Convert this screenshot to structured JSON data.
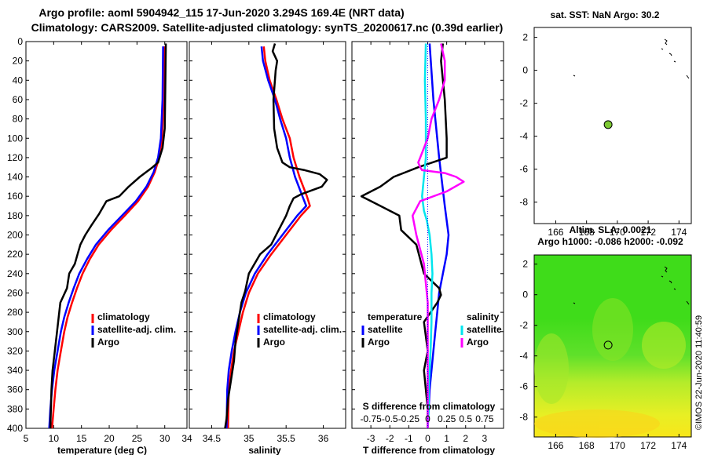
{
  "figure": {
    "title_line1": "Argo profile: aoml 5904942_115 17-Jun-2020 3.294S 169.4E (NRT data)",
    "title_line2": "Climatology: CARS2009. Satellite-adjusted climatology: synTS_20200617.nc (0.39d earlier)",
    "side_label": "©IMOS 22-Jun-2020 11:40:59"
  },
  "colors": {
    "climatology": "#ff0000",
    "satellite": "#0000ff",
    "argo": "#000000",
    "sal_satellite": "#00e5ee",
    "sal_argo": "#ff00ff",
    "float_marker": "#7cc832",
    "map_sst_bg": "#ffffff"
  },
  "chart_data": [
    {
      "id": "temperature",
      "type": "line",
      "xlabel": "temperature (deg C)",
      "ylabel": "",
      "xlim": [
        5,
        34
      ],
      "ylim": [
        400,
        0
      ],
      "x_ticks": [
        5,
        10,
        15,
        20,
        25,
        30
      ],
      "y_ticks": [
        0,
        20,
        40,
        60,
        80,
        100,
        120,
        140,
        160,
        180,
        200,
        220,
        240,
        260,
        280,
        300,
        320,
        340,
        360,
        380,
        400
      ],
      "legend": [
        "climatology",
        "satellite-adj. clim.",
        "Argo"
      ],
      "legend_position": "bottom-right",
      "series": [
        {
          "name": "climatology",
          "color_key": "climatology",
          "x": [
            29.9,
            29.8,
            29.5,
            29.0,
            28.2,
            27.0,
            25.2,
            22.8,
            20.3,
            18.1,
            16.5,
            15.2,
            14.2,
            13.3,
            12.5,
            11.9,
            11.3,
            10.7,
            10.3,
            10.0,
            9.7
          ],
          "y": [
            5,
            60,
            100,
            120,
            135,
            150,
            165,
            180,
            195,
            210,
            225,
            240,
            255,
            270,
            285,
            300,
            320,
            340,
            360,
            380,
            400
          ]
        },
        {
          "name": "satellite-adj. clim.",
          "color_key": "satellite",
          "x": [
            29.7,
            29.6,
            29.3,
            28.8,
            28.0,
            26.7,
            24.8,
            22.3,
            19.8,
            17.6,
            16.0,
            14.6,
            13.6,
            12.7,
            11.9,
            11.3,
            10.7,
            10.1,
            9.7,
            9.4,
            9.2
          ],
          "y": [
            5,
            60,
            100,
            120,
            135,
            150,
            165,
            180,
            195,
            210,
            225,
            240,
            255,
            270,
            285,
            300,
            320,
            340,
            360,
            380,
            400
          ]
        },
        {
          "name": "Argo",
          "color_key": "argo",
          "x": [
            30.2,
            30.1,
            30.0,
            29.6,
            28.8,
            27.8,
            25.5,
            23.5,
            21.8,
            19.5,
            18.2,
            16.8,
            15.7,
            14.8,
            14.3,
            13.8,
            12.8,
            12.4,
            11.2,
            11.0,
            10.6,
            10.2,
            9.8,
            9.6,
            9.5,
            9.4
          ],
          "y": [
            2,
            50,
            90,
            110,
            125,
            130,
            140,
            150,
            160,
            165,
            178,
            190,
            200,
            210,
            220,
            230,
            240,
            255,
            270,
            280,
            300,
            320,
            340,
            360,
            380,
            400
          ]
        }
      ]
    },
    {
      "id": "salinity",
      "type": "line",
      "xlabel": "salinity",
      "ylabel": "",
      "xlim": [
        34.2,
        36.3
      ],
      "ylim": [
        400,
        0
      ],
      "x_ticks": [
        34.5,
        35,
        35.5,
        36
      ],
      "x_tick_labels": [
        "34.5",
        "35",
        "35.5",
        "36"
      ],
      "y_ticks": [
        0,
        20,
        40,
        60,
        80,
        100,
        120,
        140,
        160,
        180,
        200,
        220,
        240,
        260,
        280,
        300,
        320,
        340,
        360,
        380,
        400
      ],
      "legend": [
        "climatology",
        "satellite-adj. clim.",
        "Argo"
      ],
      "legend_position": "bottom-right",
      "series": [
        {
          "name": "climatology",
          "color_key": "climatology",
          "x": [
            35.2,
            35.22,
            35.28,
            35.37,
            35.45,
            35.55,
            35.6,
            35.68,
            35.78,
            35.82,
            35.7,
            35.5,
            35.3,
            35.12,
            35.0,
            34.92,
            34.86,
            34.8,
            34.76,
            34.73,
            34.72
          ],
          "y": [
            5,
            20,
            40,
            60,
            80,
            100,
            120,
            140,
            160,
            170,
            180,
            200,
            220,
            240,
            260,
            280,
            300,
            320,
            340,
            360,
            400
          ]
        },
        {
          "name": "satellite-adj. clim.",
          "color_key": "satellite",
          "x": [
            35.17,
            35.19,
            35.26,
            35.35,
            35.42,
            35.5,
            35.55,
            35.62,
            35.72,
            35.77,
            35.65,
            35.45,
            35.25,
            35.08,
            34.96,
            34.88,
            34.82,
            34.77,
            34.73,
            34.71,
            34.7
          ],
          "y": [
            5,
            20,
            40,
            60,
            80,
            100,
            120,
            140,
            160,
            170,
            180,
            200,
            220,
            240,
            260,
            280,
            300,
            320,
            340,
            360,
            400
          ]
        },
        {
          "name": "Argo",
          "color_key": "argo",
          "x": [
            35.35,
            35.32,
            35.38,
            35.36,
            35.33,
            35.34,
            35.38,
            35.45,
            35.55,
            35.75,
            35.95,
            36.05,
            35.98,
            35.7,
            35.6,
            35.55,
            35.5,
            35.4,
            35.3,
            35.15,
            35.0,
            34.95,
            34.9,
            34.86,
            34.82,
            34.8,
            34.76,
            34.72,
            34.7,
            34.68
          ],
          "y": [
            2,
            10,
            20,
            30,
            60,
            90,
            110,
            125,
            130,
            133,
            137,
            143,
            150,
            158,
            162,
            170,
            180,
            195,
            210,
            220,
            240,
            258,
            270,
            290,
            310,
            330,
            350,
            370,
            390,
            400
          ]
        }
      ]
    },
    {
      "id": "difference",
      "type": "line",
      "xlabel": "T difference from climatology",
      "xlabel_top": "S difference  from climatology",
      "top_tick_labels": [
        "-0.75",
        "-0.5",
        "-0.25",
        "0",
        "0.25",
        "0.5",
        "0.75"
      ],
      "top_tick_values": [
        -3,
        -2,
        -1,
        0,
        1,
        2,
        3
      ],
      "xlim": [
        -4,
        4
      ],
      "ylim": [
        400,
        0
      ],
      "x_ticks": [
        -3,
        -2,
        -1,
        0,
        1,
        2,
        3
      ],
      "y_ticks": [
        0,
        20,
        40,
        60,
        80,
        100,
        120,
        140,
        160,
        180,
        200,
        220,
        240,
        260,
        280,
        300,
        320,
        340,
        360,
        380,
        400
      ],
      "legend_temperature_header": "temperature",
      "legend_salinity_header": "salinity",
      "legend_temperature": [
        "satellite",
        "Argo"
      ],
      "legend_salinity": [
        "satellite",
        "Argo"
      ],
      "legend_position": "bottom",
      "series": [
        {
          "name": "T satellite",
          "color_key": "satellite",
          "x": [
            0.1,
            0.3,
            0.6,
            0.9,
            1.1,
            1.0,
            0.8,
            0.6,
            0.5,
            0.4,
            0.3,
            0.2,
            0.1,
            0.05,
            0.0
          ],
          "y": [
            2,
            60,
            120,
            170,
            200,
            220,
            240,
            260,
            280,
            300,
            320,
            340,
            360,
            380,
            400
          ]
        },
        {
          "name": "T Argo",
          "color_key": "argo",
          "x": [
            0.8,
            0.7,
            0.9,
            1.0,
            1.0,
            -0.5,
            -1.8,
            -2.5,
            -3.5,
            -2.5,
            -1.5,
            -1.4,
            -0.6,
            -0.2,
            0.6,
            0.7,
            0.5,
            -0.2,
            0.0,
            -0.2,
            -0.1,
            0.0,
            0.0,
            0.0
          ],
          "y": [
            2,
            20,
            60,
            100,
            120,
            130,
            140,
            150,
            160,
            170,
            180,
            195,
            210,
            240,
            255,
            262,
            270,
            290,
            320,
            340,
            360,
            380,
            390,
            400
          ]
        },
        {
          "name": "S satellite",
          "color_key": "sal_satellite",
          "x": [
            -0.1,
            -0.15,
            -0.1,
            -0.1,
            -0.1,
            -0.2,
            -0.25,
            -0.3,
            -0.2,
            -0.05,
            0.1,
            0.2,
            0.25,
            0.2,
            0.2,
            0.15,
            0.1,
            0.05,
            0.05,
            0.0
          ],
          "y": [
            2,
            40,
            80,
            100,
            120,
            140,
            150,
            160,
            175,
            185,
            200,
            220,
            240,
            260,
            290,
            320,
            340,
            360,
            380,
            400
          ]
        },
        {
          "name": "S Argo",
          "color_key": "sal_argo",
          "x": [
            0.7,
            0.9,
            0.9,
            0.6,
            0.2,
            0.0,
            -0.2,
            -0.4,
            -0.5,
            -0.4,
            -0.3,
            0.9,
            1.5,
            1.9,
            1.0,
            -0.4,
            -0.8,
            -0.6,
            -0.2,
            0.0,
            0.0,
            0.0,
            0.0,
            0.0
          ],
          "y": [
            2,
            20,
            40,
            60,
            80,
            100,
            110,
            120,
            125,
            130,
            133,
            136,
            140,
            145,
            155,
            165,
            180,
            200,
            230,
            270,
            320,
            360,
            390,
            400
          ]
        }
      ]
    }
  ],
  "maps": {
    "sst": {
      "title": "sat. SST: NaN Argo: 30.2",
      "x_ticks": [
        166,
        168,
        170,
        172,
        174
      ],
      "y_ticks": [
        2,
        0,
        -2,
        -4,
        -6,
        -8
      ],
      "float_lon": 169.4,
      "float_lat": -3.294
    },
    "sla": {
      "title_line1": "Altim. SLA: 0.0021",
      "title_line2": "Argo h1000: -0.086 h2000: -0.092",
      "x_ticks": [
        166,
        168,
        170,
        172,
        174
      ],
      "y_ticks": [
        2,
        0,
        -2,
        -4,
        -6,
        -8
      ],
      "float_lon": 169.4,
      "float_lat": -3.294
    }
  }
}
